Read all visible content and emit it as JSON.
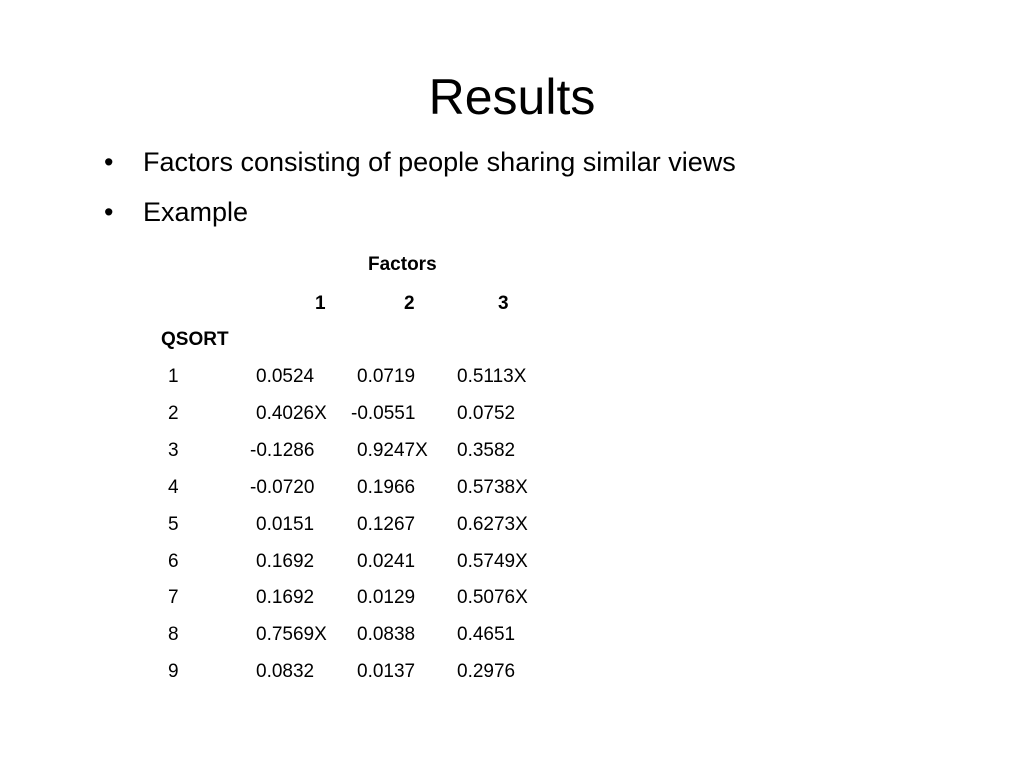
{
  "slide": {
    "title": "Results",
    "bullet_symbol": "•",
    "bullets": [
      "Factors consisting of people sharing similar views",
      "Example"
    ]
  },
  "table": {
    "caption": "Factors",
    "factor_headers": [
      "1",
      "2",
      "3"
    ],
    "row_header": "QSORT",
    "rows": [
      {
        "qsort": "1",
        "f1": "0.0524",
        "f2": "0.0719",
        "f3": "0.5113X"
      },
      {
        "qsort": "2",
        "f1": "0.4026X",
        "f2": "-0.0551",
        "f3": "0.0752"
      },
      {
        "qsort": "3",
        "f1": "-0.1286",
        "f2": "0.9247X",
        "f3": "0.3582"
      },
      {
        "qsort": "4",
        "f1": "-0.0720",
        "f2": "0.1966",
        "f3": "0.5738X"
      },
      {
        "qsort": "5",
        "f1": "0.0151",
        "f2": "0.1267",
        "f3": "0.6273X"
      },
      {
        "qsort": "6",
        "f1": "0.1692",
        "f2": "0.0241",
        "f3": "0.5749X"
      },
      {
        "qsort": "7",
        "f1": "0.1692",
        "f2": "0.0129",
        "f3": "0.5076X"
      },
      {
        "qsort": "8",
        "f1": "0.7569X",
        "f2": "0.0838",
        "f3": "0.4651"
      },
      {
        "qsort": "9",
        "f1": "0.0832",
        "f2": "0.0137",
        "f3": "0.2976"
      }
    ]
  }
}
